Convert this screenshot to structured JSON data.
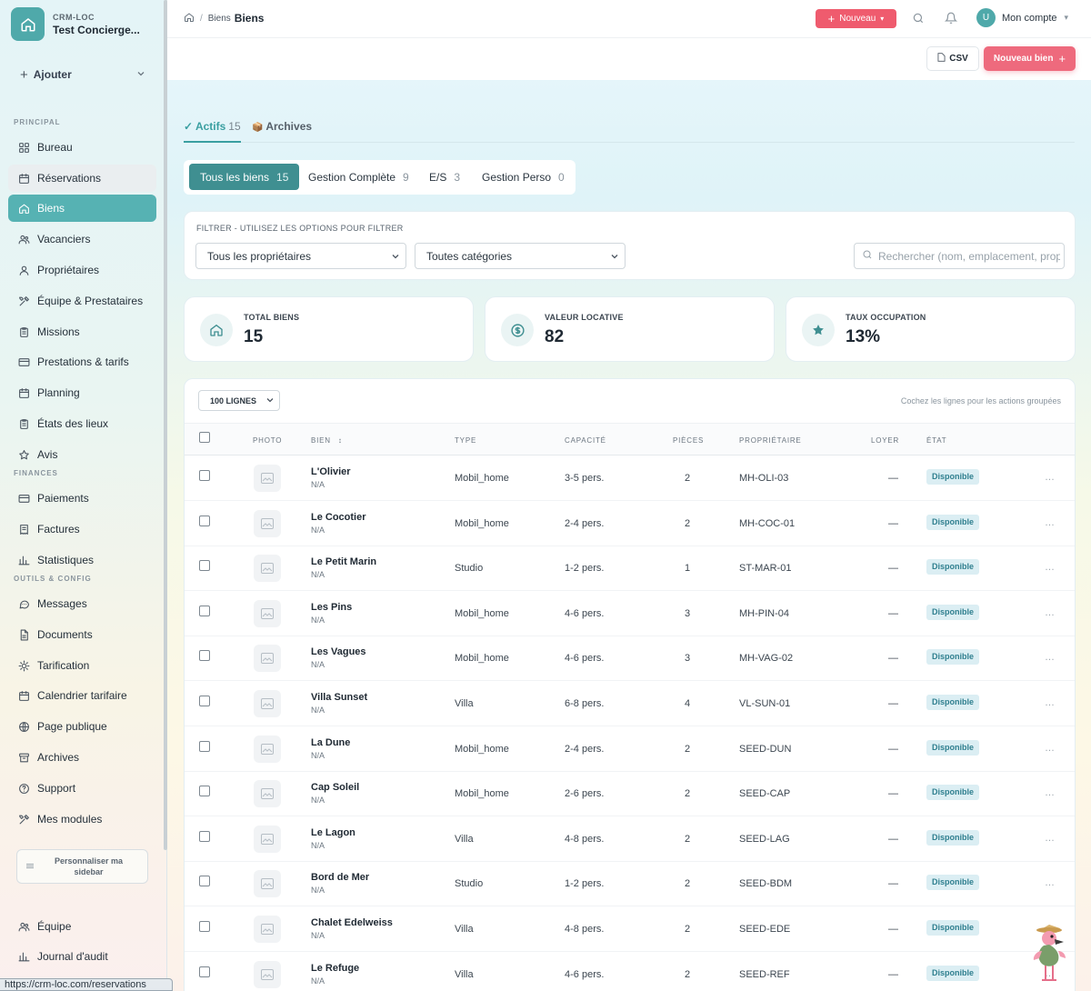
{
  "app": {
    "brand_small": "CRM-LOC",
    "brand_name": "Test Concierge..."
  },
  "sidebar": {
    "add_label": "Ajouter",
    "sections": {
      "principal": "PRINCIPAL",
      "finances": "FINANCES",
      "outils": "OUTILS & CONFIG"
    },
    "items": [
      {
        "label": "Bureau",
        "icon": "grid-icon"
      },
      {
        "label": "Réservations",
        "icon": "calendar-icon"
      },
      {
        "label": "Biens",
        "icon": "home-icon"
      },
      {
        "label": "Vacanciers",
        "icon": "users-icon"
      },
      {
        "label": "Propriétaires",
        "icon": "user-icon"
      },
      {
        "label": "Équipe & Prestataires",
        "icon": "tools-icon"
      },
      {
        "label": "Missions",
        "icon": "clipboard-icon"
      },
      {
        "label": "Prestations & tarifs",
        "icon": "card-icon"
      },
      {
        "label": "Planning",
        "icon": "calendar-icon"
      },
      {
        "label": "États des lieux",
        "icon": "clipboard-icon"
      },
      {
        "label": "Avis",
        "icon": "star-icon"
      },
      {
        "label": "Paiements",
        "icon": "card-icon"
      },
      {
        "label": "Factures",
        "icon": "invoice-icon"
      },
      {
        "label": "Statistiques",
        "icon": "chart-icon"
      },
      {
        "label": "Messages",
        "icon": "chat-icon"
      },
      {
        "label": "Documents",
        "icon": "document-icon"
      },
      {
        "label": "Tarification",
        "icon": "sun-icon"
      },
      {
        "label": "Calendrier tarifaire",
        "icon": "calendar-icon"
      },
      {
        "label": "Page publique",
        "icon": "globe-icon"
      },
      {
        "label": "Archives",
        "icon": "archive-icon"
      },
      {
        "label": "Support",
        "icon": "help-icon"
      },
      {
        "label": "Mes modules",
        "icon": "tools-icon"
      },
      {
        "label": "Équipe",
        "icon": "users-icon"
      },
      {
        "label": "Journal d'audit",
        "icon": "chart-icon"
      }
    ],
    "customize_label": "Personnaliser ma sidebar"
  },
  "status_url": "https://crm-loc.com/reservations",
  "topbar": {
    "crumb_parent": "Biens",
    "crumb_current": "Biens",
    "new_label": "Nouveau",
    "account_label": "Mon compte",
    "avatar_letter": "U"
  },
  "actions": {
    "csv_label": "CSV",
    "new_bien_label": "Nouveau bien"
  },
  "tabs": [
    {
      "label": "Actifs",
      "count": "15",
      "prefix": "✓"
    },
    {
      "label": "Archives",
      "count": "",
      "prefix": "📦"
    }
  ],
  "chips": [
    {
      "label": "Tous les biens",
      "count": "15"
    },
    {
      "label": "Gestion Complète",
      "count": "9"
    },
    {
      "label": "E/S",
      "count": "3"
    },
    {
      "label": "Gestion Perso",
      "count": "0"
    }
  ],
  "filter": {
    "label": "FILTRER - UTILISEZ LES OPTIONS POUR FILTRER",
    "owner_select": "Tous les propriétaires",
    "category_select": "Toutes catégories",
    "search_placeholder": "Rechercher (nom, emplacement, propriétaire...)"
  },
  "stats": [
    {
      "label": "TOTAL BIENS",
      "value": "15",
      "icon": "home-icon"
    },
    {
      "label": "VALEUR LOCATIVE",
      "value": "82",
      "icon": "dollar-icon"
    },
    {
      "label": "TAUX OCCUPATION",
      "value": "13%",
      "icon": "star-icon"
    }
  ],
  "table": {
    "rows_select": "100 LIGNES",
    "hint": "Cochez les lignes pour les actions groupées",
    "headers": {
      "photo": "PHOTO",
      "bien": "BIEN",
      "type": "TYPE",
      "capacite": "CAPACITÉ",
      "pieces": "PIÈCES",
      "proprietaire": "PROPRIÉTAIRE",
      "loyer": "LOYER",
      "etat": "ÉTAT"
    },
    "rows": [
      {
        "name": "L'Olivier",
        "sub": "N/A",
        "type": "Mobil_home",
        "capacity": "3-5 pers.",
        "rooms": "2",
        "owner": "MH-OLI-03",
        "rent": "—",
        "status": "Disponible"
      },
      {
        "name": "Le Cocotier",
        "sub": "N/A",
        "type": "Mobil_home",
        "capacity": "2-4 pers.",
        "rooms": "2",
        "owner": "MH-COC-01",
        "rent": "—",
        "status": "Disponible"
      },
      {
        "name": "Le Petit Marin",
        "sub": "N/A",
        "type": "Studio",
        "capacity": "1-2 pers.",
        "rooms": "1",
        "owner": "ST-MAR-01",
        "rent": "—",
        "status": "Disponible"
      },
      {
        "name": "Les Pins",
        "sub": "N/A",
        "type": "Mobil_home",
        "capacity": "4-6 pers.",
        "rooms": "3",
        "owner": "MH-PIN-04",
        "rent": "—",
        "status": "Disponible"
      },
      {
        "name": "Les Vagues",
        "sub": "N/A",
        "type": "Mobil_home",
        "capacity": "4-6 pers.",
        "rooms": "3",
        "owner": "MH-VAG-02",
        "rent": "—",
        "status": "Disponible"
      },
      {
        "name": "Villa Sunset",
        "sub": "N/A",
        "type": "Villa",
        "capacity": "6-8 pers.",
        "rooms": "4",
        "owner": "VL-SUN-01",
        "rent": "—",
        "status": "Disponible"
      },
      {
        "name": "La Dune",
        "sub": "N/A",
        "type": "Mobil_home",
        "capacity": "2-4 pers.",
        "rooms": "2",
        "owner": "SEED-DUN",
        "rent": "—",
        "status": "Disponible"
      },
      {
        "name": "Cap Soleil",
        "sub": "N/A",
        "type": "Mobil_home",
        "capacity": "2-6 pers.",
        "rooms": "2",
        "owner": "SEED-CAP",
        "rent": "—",
        "status": "Disponible"
      },
      {
        "name": "Le Lagon",
        "sub": "N/A",
        "type": "Villa",
        "capacity": "4-8 pers.",
        "rooms": "2",
        "owner": "SEED-LAG",
        "rent": "—",
        "status": "Disponible"
      },
      {
        "name": "Bord de Mer",
        "sub": "N/A",
        "type": "Studio",
        "capacity": "1-2 pers.",
        "rooms": "2",
        "owner": "SEED-BDM",
        "rent": "—",
        "status": "Disponible"
      },
      {
        "name": "Chalet Edelweiss",
        "sub": "N/A",
        "type": "Villa",
        "capacity": "4-8 pers.",
        "rooms": "2",
        "owner": "SEED-EDE",
        "rent": "—",
        "status": "Disponible"
      },
      {
        "name": "Le Refuge",
        "sub": "N/A",
        "type": "Villa",
        "capacity": "4-6 pers.",
        "rooms": "2",
        "owner": "SEED-REF",
        "rent": "—",
        "status": "Disponible"
      }
    ]
  },
  "colors": {
    "accent": "#4fa9aa",
    "primary_action": "#ef5b6e",
    "badge_bg": "#dbeef3",
    "badge_text": "#2f7f8f"
  }
}
